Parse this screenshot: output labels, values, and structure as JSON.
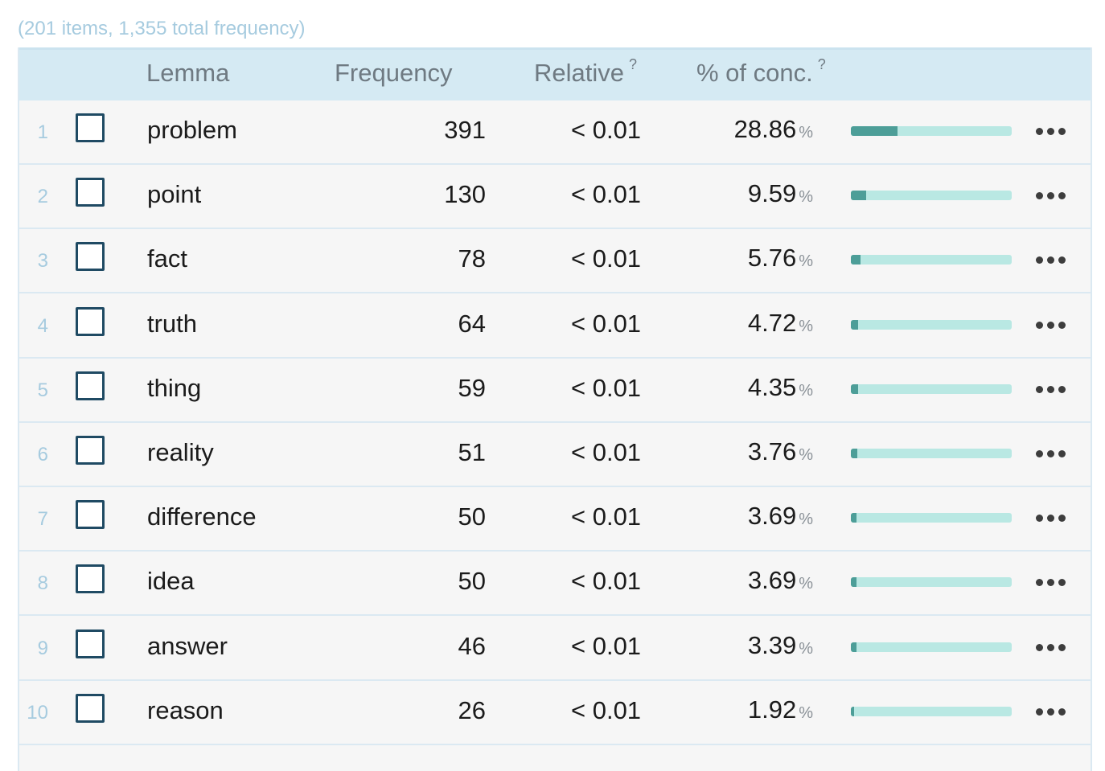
{
  "summary": "(201 items, 1,355 total frequency)",
  "columns": {
    "lemma": "Lemma",
    "frequency": "Frequency",
    "relative": "Relative",
    "relative_help": "?",
    "pct_conc": "% of conc.",
    "pct_conc_help": "?"
  },
  "percent_unit": "%",
  "more_icon": "ellipsis-icon",
  "rows": [
    {
      "index": "1",
      "lemma": "problem",
      "frequency": "391",
      "relative": "< 0.01",
      "pct": "28.86",
      "pct_value": 28.86
    },
    {
      "index": "2",
      "lemma": "point",
      "frequency": "130",
      "relative": "< 0.01",
      "pct": "9.59",
      "pct_value": 9.59
    },
    {
      "index": "3",
      "lemma": "fact",
      "frequency": "78",
      "relative": "< 0.01",
      "pct": "5.76",
      "pct_value": 5.76
    },
    {
      "index": "4",
      "lemma": "truth",
      "frequency": "64",
      "relative": "< 0.01",
      "pct": "4.72",
      "pct_value": 4.72
    },
    {
      "index": "5",
      "lemma": "thing",
      "frequency": "59",
      "relative": "< 0.01",
      "pct": "4.35",
      "pct_value": 4.35
    },
    {
      "index": "6",
      "lemma": "reality",
      "frequency": "51",
      "relative": "< 0.01",
      "pct": "3.76",
      "pct_value": 3.76
    },
    {
      "index": "7",
      "lemma": "difference",
      "frequency": "50",
      "relative": "< 0.01",
      "pct": "3.69",
      "pct_value": 3.69
    },
    {
      "index": "8",
      "lemma": "idea",
      "frequency": "50",
      "relative": "< 0.01",
      "pct": "3.69",
      "pct_value": 3.69
    },
    {
      "index": "9",
      "lemma": "answer",
      "frequency": "46",
      "relative": "< 0.01",
      "pct": "3.39",
      "pct_value": 3.39
    },
    {
      "index": "10",
      "lemma": "reason",
      "frequency": "26",
      "relative": "< 0.01",
      "pct": "1.92",
      "pct_value": 1.92
    }
  ]
}
